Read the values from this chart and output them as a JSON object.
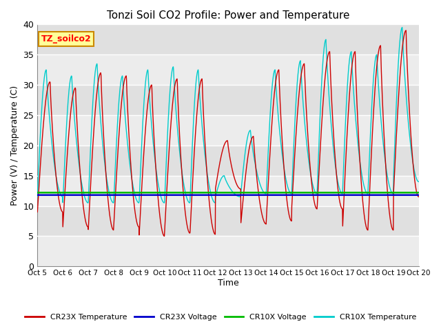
{
  "title": "Tonzi Soil CO2 Profile: Power and Temperature",
  "xlabel": "Time",
  "ylabel": "Power (V) / Temperature (C)",
  "ylim": [
    0,
    40
  ],
  "xtick_labels": [
    "Oct 5",
    "Oct 6",
    "Oct 7",
    "Oct 8",
    "Oct 9",
    "Oct 10",
    "Oct 11",
    "Oct 12",
    "Oct 13",
    "Oct 14",
    "Oct 15",
    "Oct 16",
    "Oct 17",
    "Oct 18",
    "Oct 19",
    "Oct 20"
  ],
  "ytick_vals": [
    0,
    5,
    10,
    15,
    20,
    25,
    30,
    35,
    40
  ],
  "annotation_text": "TZ_soilco2",
  "annotation_box_color": "#FFFF99",
  "annotation_border_color": "#CC8800",
  "bg_color": "#E0E0E0",
  "stripe_color": "#ECECEC",
  "cr23x_temp_color": "#CC0000",
  "cr23x_volt_color": "#0000CC",
  "cr10x_volt_color": "#00BB00",
  "cr10x_temp_color": "#00CCCC",
  "cr23x_volt_value": 11.8,
  "cr10x_volt_value": 12.2,
  "legend_labels": [
    "CR23X Temperature",
    "CR23X Voltage",
    "CR10X Voltage",
    "CR10X Temperature"
  ],
  "legend_colors": [
    "#CC0000",
    "#0000CC",
    "#00BB00",
    "#00CCCC"
  ],
  "cr23x_peaks": [
    30.5,
    29.5,
    32.0,
    31.5,
    30.0,
    31.0,
    31.0,
    20.8,
    21.5,
    32.5,
    33.5,
    35.5,
    35.5,
    36.5,
    39.0
  ],
  "cr23x_troughs": [
    9.0,
    6.5,
    6.0,
    6.5,
    5.0,
    5.5,
    5.3,
    12.8,
    7.0,
    7.5,
    9.5,
    9.5,
    6.0,
    6.0,
    11.5
  ],
  "cr23x_peak_pos": [
    0.5,
    0.5,
    0.5,
    0.5,
    0.5,
    0.5,
    0.48,
    0.48,
    0.5,
    0.5,
    0.5,
    0.5,
    0.5,
    0.5,
    0.5
  ],
  "cr10x_peaks": [
    32.5,
    31.5,
    33.5,
    31.5,
    32.5,
    33.0,
    32.5,
    15.0,
    22.5,
    32.5,
    34.0,
    37.5,
    35.5,
    35.0,
    39.5
  ],
  "cr10x_troughs": [
    11.5,
    10.5,
    10.5,
    10.5,
    10.5,
    10.5,
    10.5,
    11.5,
    12.0,
    12.0,
    12.0,
    12.0,
    12.0,
    12.0,
    14.0
  ],
  "cr10x_peak_pos": [
    0.35,
    0.35,
    0.35,
    0.35,
    0.35,
    0.35,
    0.33,
    0.35,
    0.38,
    0.35,
    0.35,
    0.35,
    0.35,
    0.35,
    0.35
  ]
}
